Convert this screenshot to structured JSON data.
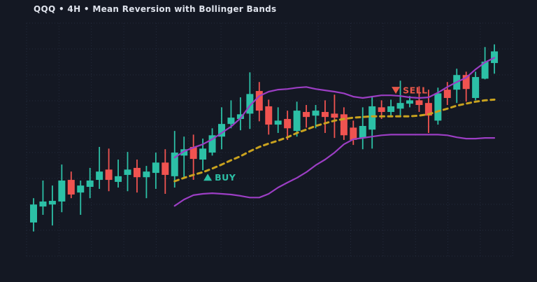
{
  "header": {
    "title": "QQQ • 4H • Mean Reversion with Bollinger Bands"
  },
  "colors": {
    "background": "#141823",
    "grid": "#242b3d",
    "bullish": "#2cc0a6",
    "bearish": "#f05350",
    "band": "#9c3ec4",
    "basis": "#c9a21e",
    "buy": "#2cc0a6",
    "sell": "#e8584a",
    "title_text": "#dfe3ec"
  },
  "chart_data": {
    "type": "candlestick",
    "title": "QQQ • 4H • Mean Reversion with Bollinger Bands",
    "symbol": "QQQ",
    "timeframe": "4H",
    "overlay": "Bollinger Bands (upper/lower solid, basis dashed)",
    "grid": true,
    "axes_labeled": false,
    "y_range": [
      430,
      500
    ],
    "candles": [
      {
        "o": 440.1,
        "h": 447.4,
        "l": 437.4,
        "c": 445.5
      },
      {
        "o": 444.9,
        "h": 452.7,
        "l": 442.4,
        "c": 446.4
      },
      {
        "o": 445.5,
        "h": 451.2,
        "l": 439.2,
        "c": 446.6
      },
      {
        "o": 446.4,
        "h": 457.5,
        "l": 443.2,
        "c": 452.7
      },
      {
        "o": 452.9,
        "h": 455.4,
        "l": 447.4,
        "c": 448.5
      },
      {
        "o": 449.1,
        "h": 452.7,
        "l": 442.4,
        "c": 451.2
      },
      {
        "o": 450.8,
        "h": 456.5,
        "l": 447.4,
        "c": 452.7
      },
      {
        "o": 452.9,
        "h": 462.8,
        "l": 450.2,
        "c": 455.4
      },
      {
        "o": 456.0,
        "h": 462.3,
        "l": 449.5,
        "c": 452.9
      },
      {
        "o": 452.3,
        "h": 459.0,
        "l": 450.6,
        "c": 454.0
      },
      {
        "o": 454.4,
        "h": 461.3,
        "l": 449.5,
        "c": 456.0
      },
      {
        "o": 456.5,
        "h": 459.0,
        "l": 449.1,
        "c": 453.7
      },
      {
        "o": 453.7,
        "h": 457.1,
        "l": 447.4,
        "c": 455.4
      },
      {
        "o": 455.0,
        "h": 461.1,
        "l": 450.2,
        "c": 458.1
      },
      {
        "o": 458.1,
        "h": 462.1,
        "l": 448.7,
        "c": 454.4
      },
      {
        "o": 454.0,
        "h": 467.6,
        "l": 450.6,
        "c": 461.1
      },
      {
        "o": 460.2,
        "h": 465.9,
        "l": 453.3,
        "c": 462.1
      },
      {
        "o": 462.8,
        "h": 466.5,
        "l": 452.9,
        "c": 459.2
      },
      {
        "o": 459.0,
        "h": 465.3,
        "l": 455.8,
        "c": 462.3
      },
      {
        "o": 461.1,
        "h": 468.4,
        "l": 460.2,
        "c": 466.3
      },
      {
        "o": 465.9,
        "h": 474.7,
        "l": 462.1,
        "c": 469.7
      },
      {
        "o": 469.7,
        "h": 476.8,
        "l": 468.4,
        "c": 471.6
      },
      {
        "o": 471.2,
        "h": 477.7,
        "l": 467.8,
        "c": 472.6
      },
      {
        "o": 472.8,
        "h": 485.2,
        "l": 468.2,
        "c": 478.7
      },
      {
        "o": 479.6,
        "h": 482.3,
        "l": 470.5,
        "c": 473.7
      },
      {
        "o": 475.0,
        "h": 477.0,
        "l": 466.5,
        "c": 469.5
      },
      {
        "o": 469.5,
        "h": 474.7,
        "l": 467.0,
        "c": 470.7
      },
      {
        "o": 471.2,
        "h": 473.7,
        "l": 464.9,
        "c": 468.4
      },
      {
        "o": 467.6,
        "h": 476.4,
        "l": 465.9,
        "c": 473.7
      },
      {
        "o": 473.3,
        "h": 475.4,
        "l": 468.6,
        "c": 471.8
      },
      {
        "o": 472.2,
        "h": 475.4,
        "l": 468.4,
        "c": 473.7
      },
      {
        "o": 473.3,
        "h": 476.8,
        "l": 467.0,
        "c": 471.8
      },
      {
        "o": 472.8,
        "h": 478.5,
        "l": 465.5,
        "c": 471.6
      },
      {
        "o": 472.6,
        "h": 474.7,
        "l": 464.9,
        "c": 466.3
      },
      {
        "o": 468.6,
        "h": 470.7,
        "l": 463.4,
        "c": 464.9
      },
      {
        "o": 465.5,
        "h": 474.7,
        "l": 462.1,
        "c": 469.1
      },
      {
        "o": 468.0,
        "h": 478.1,
        "l": 462.3,
        "c": 475.0
      },
      {
        "o": 474.7,
        "h": 476.8,
        "l": 471.2,
        "c": 473.3
      },
      {
        "o": 473.3,
        "h": 477.0,
        "l": 471.8,
        "c": 475.0
      },
      {
        "o": 474.3,
        "h": 482.7,
        "l": 472.2,
        "c": 476.0
      },
      {
        "o": 475.8,
        "h": 478.1,
        "l": 474.7,
        "c": 476.8
      },
      {
        "o": 476.8,
        "h": 481.0,
        "l": 473.3,
        "c": 475.4
      },
      {
        "o": 476.0,
        "h": 480.0,
        "l": 467.0,
        "c": 472.2
      },
      {
        "o": 470.7,
        "h": 480.6,
        "l": 469.5,
        "c": 478.9
      },
      {
        "o": 480.0,
        "h": 482.3,
        "l": 475.4,
        "c": 477.5
      },
      {
        "o": 480.0,
        "h": 486.3,
        "l": 476.0,
        "c": 484.4
      },
      {
        "o": 484.4,
        "h": 485.4,
        "l": 476.4,
        "c": 480.2
      },
      {
        "o": 477.5,
        "h": 485.4,
        "l": 476.8,
        "c": 483.8
      },
      {
        "o": 483.3,
        "h": 492.8,
        "l": 483.1,
        "c": 488.4
      },
      {
        "o": 488.0,
        "h": 493.6,
        "l": 484.8,
        "c": 491.5
      }
    ],
    "bollinger": {
      "start_index": 15,
      "upper": [
        459.6,
        461.5,
        462.6,
        463.6,
        465.1,
        467.0,
        468.9,
        471.4,
        475.2,
        478.1,
        479.4,
        480.0,
        480.2,
        480.6,
        480.8,
        480.2,
        479.8,
        479.4,
        478.9,
        477.9,
        477.5,
        477.9,
        478.3,
        478.3,
        478.1,
        477.7,
        477.5,
        477.7,
        479.1,
        480.8,
        482.3,
        483.6,
        486.1,
        488.2,
        489.6
      ],
      "middle": [
        452.5,
        453.5,
        454.4,
        455.2,
        456.3,
        457.5,
        458.8,
        460.0,
        461.5,
        462.8,
        463.8,
        464.7,
        465.7,
        467.0,
        468.0,
        469.1,
        469.9,
        470.7,
        471.2,
        471.6,
        471.8,
        472.0,
        472.0,
        472.0,
        472.0,
        472.0,
        472.2,
        472.6,
        473.5,
        474.3,
        475.2,
        475.8,
        476.4,
        476.8,
        477.0
      ],
      "lower": [
        445.1,
        447.0,
        448.3,
        448.7,
        448.9,
        448.7,
        448.5,
        448.1,
        447.6,
        447.6,
        448.7,
        450.6,
        452.1,
        453.5,
        455.2,
        457.3,
        459.0,
        461.1,
        463.6,
        465.1,
        465.5,
        465.9,
        466.3,
        466.5,
        466.5,
        466.5,
        466.5,
        466.5,
        466.5,
        466.3,
        465.7,
        465.3,
        465.3,
        465.5,
        465.5
      ]
    },
    "markers": [
      {
        "type": "buy",
        "label": "BUY",
        "candle_index": 18,
        "price": 453.7,
        "direction": "up"
      },
      {
        "type": "sell",
        "label": "SELL",
        "candle_index": 38,
        "price": 479.8,
        "direction": "down"
      }
    ]
  }
}
